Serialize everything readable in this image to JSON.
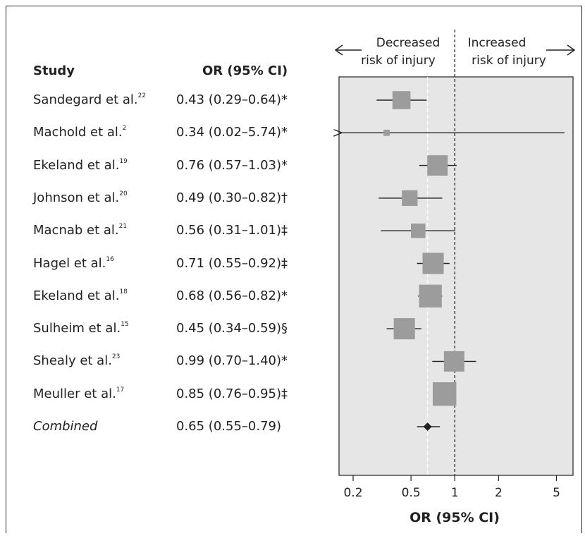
{
  "headers": {
    "study": "Study",
    "or": "OR (95% CI)"
  },
  "annotations": {
    "decreased_line1": "Decreased",
    "decreased_line2": "risk of injury",
    "increased_line1": "Increased",
    "increased_line2": "risk of injury"
  },
  "chart_data": {
    "type": "forest",
    "scale": "log",
    "xlabel": "OR (95% CI)",
    "xticks": [
      0.2,
      0.5,
      1,
      2,
      5
    ],
    "xtick_labels": [
      "0.2",
      "0.5",
      "1",
      "2",
      "5"
    ],
    "xlim": [
      0.16,
      6.5
    ],
    "reference_line": 1,
    "combined_line": 0.65,
    "studies": [
      {
        "name": "Sandegard et al.",
        "ref": "22",
        "or": 0.43,
        "lo": 0.29,
        "hi": 0.64,
        "text": "0.43 (0.29–0.64)*",
        "weight": 0.7
      },
      {
        "name": "Machold et al.",
        "ref": "2",
        "or": 0.34,
        "lo": 0.02,
        "hi": 5.74,
        "text": "0.34 (0.02–5.74)*",
        "weight": 0.1
      },
      {
        "name": "Ekeland et al.",
        "ref": "19",
        "or": 0.76,
        "lo": 0.57,
        "hi": 1.03,
        "text": "0.76 (0.57–1.03)*",
        "weight": 0.82
      },
      {
        "name": "Johnson et al.",
        "ref": "20",
        "or": 0.49,
        "lo": 0.3,
        "hi": 0.82,
        "text": "0.49 (0.30–0.82)†",
        "weight": 0.58
      },
      {
        "name": "Macnab et al.",
        "ref": "21",
        "or": 0.56,
        "lo": 0.31,
        "hi": 1.01,
        "text": "0.56 (0.31–1.01)‡",
        "weight": 0.52
      },
      {
        "name": "Hagel et al.",
        "ref": "16",
        "or": 0.71,
        "lo": 0.55,
        "hi": 0.92,
        "text": "0.71 (0.55–0.92)‡",
        "weight": 0.86
      },
      {
        "name": "Ekeland et al.",
        "ref": "18",
        "or": 0.68,
        "lo": 0.56,
        "hi": 0.82,
        "text": "0.68 (0.56–0.82)*",
        "weight": 0.94
      },
      {
        "name": "Sulheim et al.",
        "ref": "15",
        "or": 0.45,
        "lo": 0.34,
        "hi": 0.59,
        "text": "0.45 (0.34–0.59)§",
        "weight": 0.86
      },
      {
        "name": "Shealy et al.",
        "ref": "23",
        "or": 0.99,
        "lo": 0.7,
        "hi": 1.4,
        "text": "0.99 (0.70–1.40)*",
        "weight": 0.82
      },
      {
        "name": "Meuller et al.",
        "ref": "17",
        "or": 0.85,
        "lo": 0.76,
        "hi": 0.95,
        "text": "0.85 (0.76–0.95)‡",
        "weight": 0.98
      }
    ],
    "combined": {
      "name": "Combined",
      "or": 0.65,
      "lo": 0.55,
      "hi": 0.79,
      "text": "0.65 (0.55–0.79)"
    }
  },
  "colors": {
    "panel": "#e6e6e6",
    "box": "#9c9c9c",
    "line": "#222222",
    "diamond": "#222222"
  }
}
